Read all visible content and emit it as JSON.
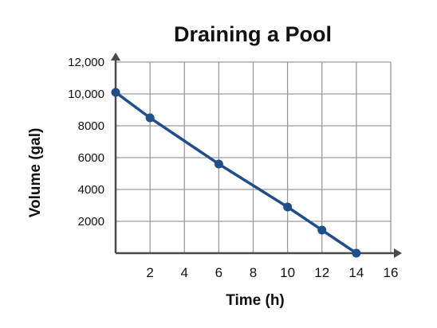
{
  "chart_data": {
    "type": "line",
    "title": "Draining a Pool",
    "xlabel": "Time (h)",
    "ylabel": "Volume (gal)",
    "xlim": [
      0,
      16
    ],
    "ylim": [
      0,
      12000
    ],
    "x_ticks": [
      2,
      4,
      6,
      8,
      10,
      12,
      14,
      16
    ],
    "y_ticks": [
      2000,
      4000,
      6000,
      8000,
      10000,
      12000
    ],
    "x_tick_labels": [
      "2",
      "4",
      "6",
      "8",
      "10",
      "12",
      "14",
      "16"
    ],
    "y_tick_labels": [
      "2000",
      "4000",
      "6000",
      "8000",
      "10,000",
      "12,000"
    ],
    "grid": true,
    "series": [
      {
        "x": [
          0,
          2,
          6,
          10,
          12,
          14
        ],
        "y": [
          10100,
          8500,
          5600,
          2900,
          1450,
          0
        ]
      }
    ]
  },
  "colors": {
    "line": "#1f4e8c",
    "grid": "#9a9a9a",
    "axis": "#4a4a4a"
  }
}
